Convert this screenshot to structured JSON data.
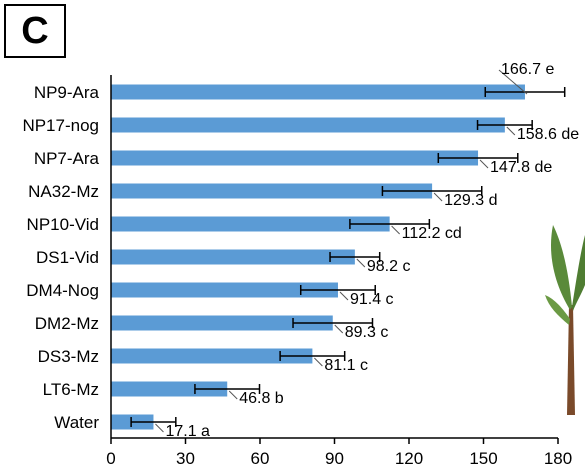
{
  "panel": {
    "label": "C"
  },
  "colors": {
    "bar": "#5b9bd5",
    "axis": "#000000",
    "water_label": "#1a3fbf",
    "plant_leaf": "#5a8a3a",
    "plant_stem": "#7a4a2a"
  },
  "chart_data": {
    "type": "bar",
    "orientation": "horizontal",
    "title": "",
    "xlabel": "",
    "ylabel": "",
    "xlim": [
      0,
      180
    ],
    "xticks": [
      0,
      30,
      60,
      90,
      120,
      150,
      180
    ],
    "grid": false,
    "categories": [
      "NP9-Ara",
      "NP17-nog",
      "NP7-Ara",
      "NA32-Mz",
      "NP10-Vid",
      "DS1-Vid",
      "DM4-Nog",
      "DM2-Mz",
      "DS3-Mz",
      "LT6-Mz",
      "Water"
    ],
    "values": [
      166.7,
      158.6,
      147.8,
      129.3,
      112.2,
      98.2,
      91.4,
      89.3,
      81.1,
      46.8,
      17.1
    ],
    "errors": [
      16,
      11,
      16,
      20,
      16,
      10,
      15,
      16,
      13,
      13,
      9
    ],
    "labels": [
      "166.7 e",
      "158.6 de",
      "147.8 de",
      "129.3 d",
      "112.2 cd",
      "98.2 c",
      "91.4 c",
      "89.3 c",
      "81.1 c",
      "46.8 b",
      "17.1 a"
    ]
  }
}
